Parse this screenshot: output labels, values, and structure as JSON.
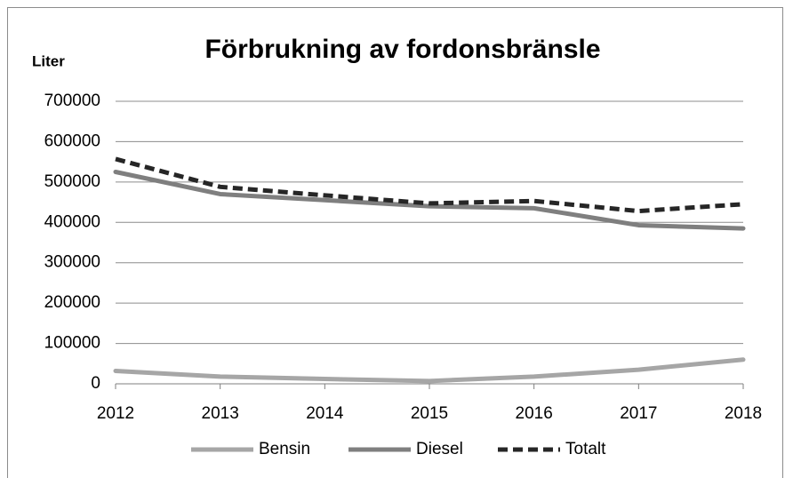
{
  "chart_data": {
    "type": "line",
    "title": "Förbrukning av fordonsbränsle",
    "y_label": "Liter",
    "categories": [
      "2012",
      "2013",
      "2014",
      "2015",
      "2016",
      "2017",
      "2018"
    ],
    "series": [
      {
        "name": "Bensin",
        "color": "#a6a6a6",
        "values": [
          32000,
          18000,
          12000,
          7000,
          18000,
          35000,
          60000
        ]
      },
      {
        "name": "Diesel",
        "color": "#7f7f7f",
        "values": [
          525000,
          470000,
          455000,
          440000,
          435000,
          393000,
          385000
        ]
      },
      {
        "name": "Totalt",
        "color": "#262626",
        "dashed": true,
        "values": [
          557000,
          488000,
          467000,
          447000,
          453000,
          428000,
          445000
        ]
      }
    ],
    "ylim": [
      0,
      700000
    ],
    "yticks": [
      0,
      100000,
      200000,
      300000,
      400000,
      500000,
      600000,
      700000
    ],
    "grid": true,
    "legend": "bottom"
  }
}
